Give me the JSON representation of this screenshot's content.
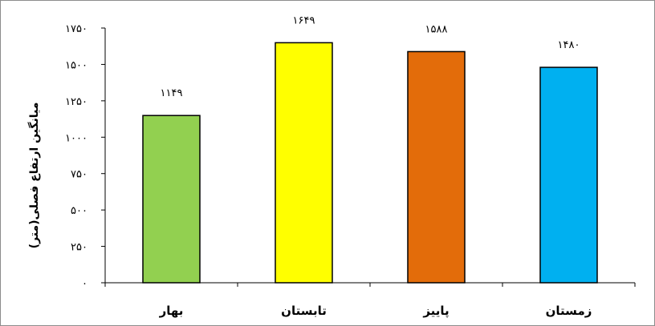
{
  "chart_data": {
    "type": "bar",
    "categories": [
      "بهار",
      "تابستان",
      "پاییز",
      "زمستان"
    ],
    "values": [
      1149,
      1649,
      1588,
      1480
    ],
    "value_labels": [
      "۱۱۴۹",
      "۱۶۴۹",
      "۱۵۸۸",
      "۱۴۸۰"
    ],
    "colors": [
      "#92d050",
      "#ffff00",
      "#e36c0a",
      "#00b0f0"
    ],
    "bar_border_color": "#000000",
    "ylim": [
      0,
      1750
    ],
    "yticks": [
      0,
      250,
      500,
      750,
      1000,
      1250,
      1500,
      1750
    ],
    "ytick_labels": [
      "۰",
      "۲۵۰",
      "۵۰۰",
      "۷۵۰",
      "۱۰۰۰",
      "۱۲۵۰",
      "۱۵۰۰",
      "۱۷۵۰"
    ],
    "ylabel": "میانگین ارتفاع فصلی(متر)",
    "xlabel": "",
    "title": "",
    "grid": false,
    "legend": "none"
  }
}
